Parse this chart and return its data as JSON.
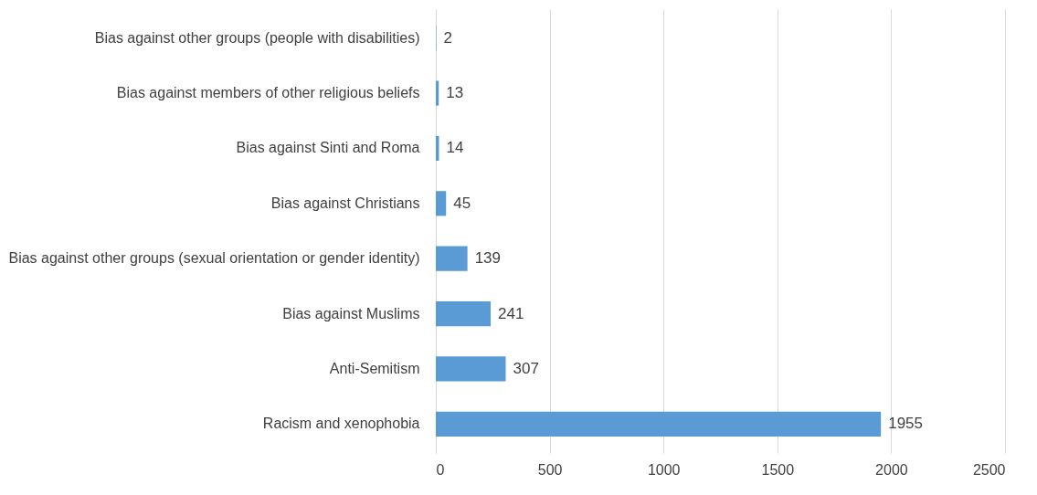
{
  "chart_data": {
    "type": "bar",
    "orientation": "horizontal",
    "categories": [
      "Bias against other groups (people with disabilities)",
      "Bias against members of other religious beliefs",
      "Bias against Sinti and Roma",
      "Bias against Christians",
      "Bias against other groups (sexual orientation or gender identity)",
      "Bias against Muslims",
      "Anti-Semitism",
      "Racism and xenophobia"
    ],
    "values": [
      2,
      13,
      14,
      45,
      139,
      241,
      307,
      1955
    ],
    "color": "#5b9bd5",
    "xlim": [
      0,
      2500
    ],
    "xticks": [
      0,
      500,
      1000,
      1500,
      2000,
      2500
    ],
    "grid": "x",
    "data_labels": true
  }
}
